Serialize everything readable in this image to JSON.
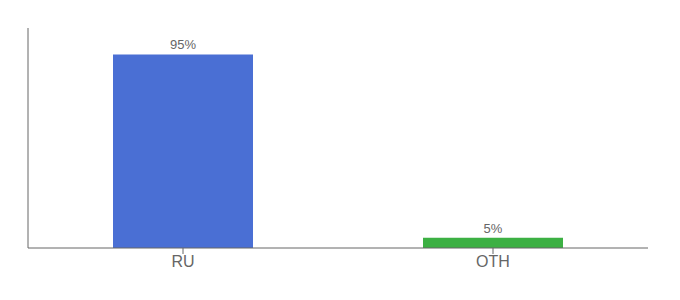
{
  "chart_data": {
    "type": "bar",
    "categories": [
      "RU",
      "OTH"
    ],
    "values": [
      95,
      5
    ],
    "value_labels": [
      "95%",
      "5%"
    ],
    "colors": [
      "#4a6fd4",
      "#3cb043"
    ],
    "ylim": [
      0,
      108
    ],
    "data_labels": true,
    "tick_labels": "x",
    "grid": false
  }
}
